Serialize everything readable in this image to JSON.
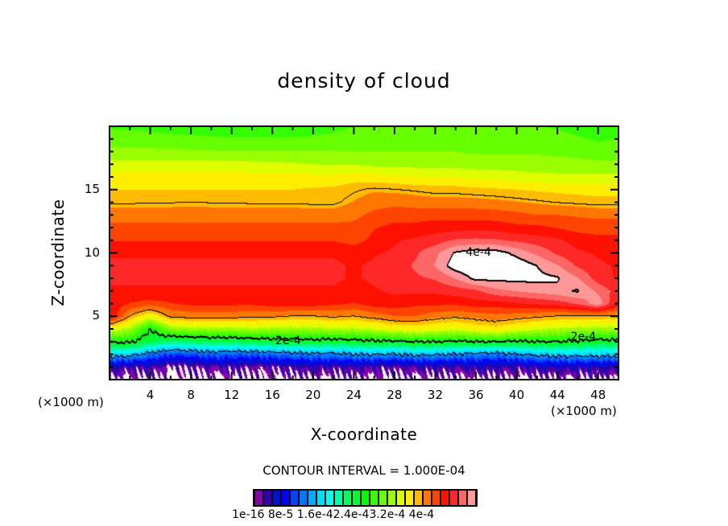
{
  "chart_data": {
    "type": "heatmap",
    "subtype": "filled-contour",
    "title": "density of cloud",
    "xlabel": "X-coordinate",
    "ylabel": "Z-coordinate",
    "x_unit_left": "(×1000 m)",
    "x_unit_right": "(×1000 m)",
    "xlim": [
      0,
      50
    ],
    "ylim": [
      0,
      20
    ],
    "xticks": [
      4,
      8,
      12,
      16,
      20,
      24,
      28,
      32,
      36,
      40,
      44,
      48
    ],
    "xtick_labels": [
      "4",
      "8",
      "12",
      "16",
      "20",
      "24",
      "28",
      "32",
      "36",
      "40",
      "44",
      "48"
    ],
    "x_minor_step": 2,
    "yticks": [
      5,
      10,
      15
    ],
    "ytick_labels": [
      "5",
      "10",
      "15"
    ],
    "y_minor_step": 1,
    "grid": false,
    "value_scale": 0.0001,
    "contour_interval_text": "CONTOUR INTERVAL = 1.000E-04",
    "contour_lines": [
      {
        "level": 0.0001,
        "labeled": false
      },
      {
        "level": 0.0002,
        "labeled": true,
        "label": "2e-4"
      },
      {
        "level": 0.0003,
        "labeled": false
      },
      {
        "level": 0.0004,
        "labeled": true,
        "label": "4e-4"
      }
    ],
    "contour_label_positions": [
      {
        "text": "2e-4",
        "x": 16.3,
        "z": 3.0
      },
      {
        "text": "2e-4",
        "x": 45.3,
        "z": 3.3
      },
      {
        "text": "4e-4",
        "x": 35.0,
        "z": 10.0
      }
    ],
    "colorbar": {
      "levels_step": 1.6e-05,
      "colors": [
        "#8800aa",
        "#3300aa",
        "#0011cc",
        "#0000ff",
        "#0044ff",
        "#0077ff",
        "#00aaff",
        "#00ddff",
        "#00ffee",
        "#00ffaa",
        "#00ff66",
        "#00ff33",
        "#00ff00",
        "#33ff00",
        "#66ff00",
        "#99ff00",
        "#ddff00",
        "#ffee00",
        "#ffbb00",
        "#ff7700",
        "#ff4400",
        "#ff1100",
        "#ff2828",
        "#ff6666",
        "#ff9999"
      ],
      "above_color": "#ffffff",
      "below_color": "#ffffff",
      "tick_labels_text": "1e-16 8e-5 1.6e-42.4e-43.2e-4 4e-4"
    },
    "grid_x": [
      0,
      2,
      4,
      6,
      8,
      10,
      12,
      14,
      16,
      18,
      20,
      22,
      24,
      26,
      28,
      30,
      32,
      34,
      36,
      38,
      40,
      42,
      44,
      46,
      48,
      50
    ],
    "grid_z": [
      0,
      1,
      2,
      3,
      4,
      5,
      6,
      7,
      8,
      9,
      10,
      11,
      12,
      13,
      14,
      15,
      16,
      17,
      18,
      19,
      20
    ],
    "values": [
      [
        0,
        0,
        0,
        0,
        0,
        0,
        0,
        0,
        0,
        0,
        0,
        0,
        0,
        0,
        0,
        0,
        0,
        0,
        0,
        0,
        0,
        0,
        0,
        0,
        0,
        0
      ],
      [
        0.3,
        0.2,
        0.25,
        0.05,
        0.1,
        0.15,
        0.2,
        0.1,
        0.15,
        0.2,
        0.25,
        0.2,
        0.25,
        0.2,
        0.15,
        0.2,
        0.25,
        0.2,
        0.3,
        0.25,
        0.2,
        0.3,
        0.3,
        0.3,
        0.3,
        0.3
      ],
      [
        1.2,
        1.15,
        0.9,
        0.7,
        0.75,
        0.85,
        0.8,
        0.8,
        0.85,
        0.9,
        0.95,
        0.95,
        1.0,
        1.05,
        1.0,
        1.1,
        1.05,
        1.0,
        0.95,
        0.9,
        1.0,
        1.1,
        1.15,
        1.15,
        1.15,
        1.15
      ],
      [
        2.05,
        2.05,
        1.8,
        1.65,
        1.7,
        1.75,
        1.75,
        1.8,
        1.85,
        1.85,
        1.9,
        1.85,
        1.9,
        1.95,
        1.95,
        2.0,
        2.0,
        1.95,
        2.0,
        2.0,
        1.95,
        2.0,
        2.0,
        1.95,
        1.9,
        1.9
      ],
      [
        2.7,
        2.5,
        2.0,
        2.45,
        2.5,
        2.5,
        2.5,
        2.55,
        2.5,
        2.5,
        2.5,
        2.55,
        2.55,
        2.6,
        2.7,
        2.75,
        2.7,
        2.65,
        2.75,
        2.8,
        2.7,
        2.6,
        2.55,
        2.5,
        2.5,
        2.5
      ],
      [
        3.55,
        3.0,
        2.7,
        3.05,
        3.1,
        3.1,
        3.1,
        3.05,
        3.05,
        3.0,
        3.0,
        3.05,
        3.0,
        3.1,
        3.2,
        3.2,
        3.1,
        3.05,
        3.1,
        3.15,
        3.1,
        3.05,
        3.0,
        3.0,
        2.98,
        2.98
      ],
      [
        3.5,
        3.35,
        3.3,
        3.35,
        3.4,
        3.4,
        3.4,
        3.4,
        3.45,
        3.45,
        3.45,
        3.4,
        3.35,
        3.45,
        3.45,
        3.4,
        3.4,
        3.4,
        3.45,
        3.45,
        3.5,
        3.55,
        3.6,
        3.7,
        3.95,
        3.45
      ],
      [
        3.5,
        3.5,
        3.5,
        3.5,
        3.5,
        3.5,
        3.5,
        3.5,
        3.5,
        3.5,
        3.5,
        3.5,
        3.45,
        3.5,
        3.55,
        3.55,
        3.55,
        3.6,
        3.65,
        3.8,
        3.85,
        3.9,
        3.95,
        4.02,
        3.8,
        3.6
      ],
      [
        3.55,
        3.55,
        3.55,
        3.55,
        3.55,
        3.55,
        3.55,
        3.55,
        3.55,
        3.55,
        3.55,
        3.55,
        3.5,
        3.55,
        3.6,
        3.65,
        3.7,
        3.85,
        4.05,
        4.05,
        4.05,
        4.05,
        4.02,
        3.85,
        3.6,
        3.5
      ],
      [
        3.55,
        3.55,
        3.55,
        3.55,
        3.55,
        3.55,
        3.55,
        3.55,
        3.55,
        3.55,
        3.55,
        3.55,
        3.5,
        3.55,
        3.6,
        3.7,
        3.85,
        4.1,
        4.15,
        4.15,
        4.12,
        4.0,
        3.85,
        3.65,
        3.55,
        3.5
      ],
      [
        3.5,
        3.5,
        3.5,
        3.5,
        3.5,
        3.5,
        3.5,
        3.5,
        3.5,
        3.5,
        3.5,
        3.5,
        3.45,
        3.5,
        3.55,
        3.65,
        3.8,
        4.02,
        4.1,
        4.08,
        3.95,
        3.8,
        3.65,
        3.55,
        3.5,
        3.45
      ],
      [
        3.35,
        3.35,
        3.35,
        3.35,
        3.35,
        3.35,
        3.35,
        3.35,
        3.35,
        3.35,
        3.35,
        3.35,
        3.3,
        3.4,
        3.5,
        3.55,
        3.6,
        3.7,
        3.72,
        3.7,
        3.65,
        3.6,
        3.55,
        3.45,
        3.4,
        3.4
      ],
      [
        3.25,
        3.25,
        3.25,
        3.25,
        3.25,
        3.25,
        3.25,
        3.25,
        3.25,
        3.25,
        3.25,
        3.25,
        3.25,
        3.35,
        3.4,
        3.4,
        3.45,
        3.45,
        3.45,
        3.45,
        3.4,
        3.4,
        3.35,
        3.3,
        3.3,
        3.3
      ],
      [
        3.12,
        3.12,
        3.12,
        3.12,
        3.12,
        3.12,
        3.12,
        3.12,
        3.12,
        3.12,
        3.12,
        3.12,
        3.15,
        3.25,
        3.3,
        3.3,
        3.3,
        3.3,
        3.3,
        3.28,
        3.25,
        3.2,
        3.2,
        3.18,
        3.15,
        3.15
      ],
      [
        2.98,
        2.98,
        2.99,
        2.99,
        3.0,
        2.99,
        2.99,
        2.98,
        2.98,
        2.98,
        2.97,
        2.97,
        3.05,
        3.12,
        3.15,
        3.12,
        3.1,
        3.1,
        3.1,
        3.08,
        3.05,
        3.02,
        2.99,
        2.97,
        2.95,
        2.95
      ],
      [
        2.88,
        2.88,
        2.88,
        2.88,
        2.88,
        2.88,
        2.88,
        2.88,
        2.88,
        2.88,
        2.9,
        2.92,
        2.98,
        3.02,
        3.0,
        2.98,
        2.95,
        2.95,
        2.92,
        2.9,
        2.88,
        2.86,
        2.84,
        2.82,
        2.8,
        2.8
      ],
      [
        2.78,
        2.78,
        2.78,
        2.78,
        2.78,
        2.78,
        2.78,
        2.78,
        2.78,
        2.78,
        2.76,
        2.75,
        2.8,
        2.78,
        2.75,
        2.72,
        2.72,
        2.7,
        2.68,
        2.66,
        2.64,
        2.62,
        2.6,
        2.6,
        2.6,
        2.6
      ],
      [
        2.62,
        2.62,
        2.62,
        2.62,
        2.62,
        2.62,
        2.62,
        2.6,
        2.6,
        2.58,
        2.56,
        2.55,
        2.55,
        2.52,
        2.5,
        2.5,
        2.5,
        2.5,
        2.48,
        2.48,
        2.47,
        2.46,
        2.45,
        2.45,
        2.45,
        2.45
      ],
      [
        2.45,
        2.45,
        2.44,
        2.43,
        2.43,
        2.42,
        2.42,
        2.42,
        2.42,
        2.42,
        2.41,
        2.41,
        2.4,
        2.4,
        2.4,
        2.4,
        2.4,
        2.4,
        2.38,
        2.38,
        2.38,
        2.38,
        2.37,
        2.35,
        2.3,
        2.3
      ],
      [
        2.3,
        2.3,
        2.29,
        2.28,
        2.27,
        2.26,
        2.25,
        2.25,
        2.25,
        2.25,
        2.26,
        2.28,
        2.3,
        2.32,
        2.33,
        2.33,
        2.33,
        2.33,
        2.32,
        2.32,
        2.32,
        2.31,
        2.3,
        2.26,
        2.22,
        2.25
      ],
      [
        2.22,
        2.22,
        2.2,
        2.18,
        2.17,
        2.16,
        2.15,
        2.15,
        2.15,
        2.16,
        2.18,
        2.2,
        2.24,
        2.26,
        2.27,
        2.27,
        2.27,
        2.27,
        2.27,
        2.27,
        2.26,
        2.25,
        2.22,
        2.18,
        2.15,
        2.18
      ]
    ]
  }
}
